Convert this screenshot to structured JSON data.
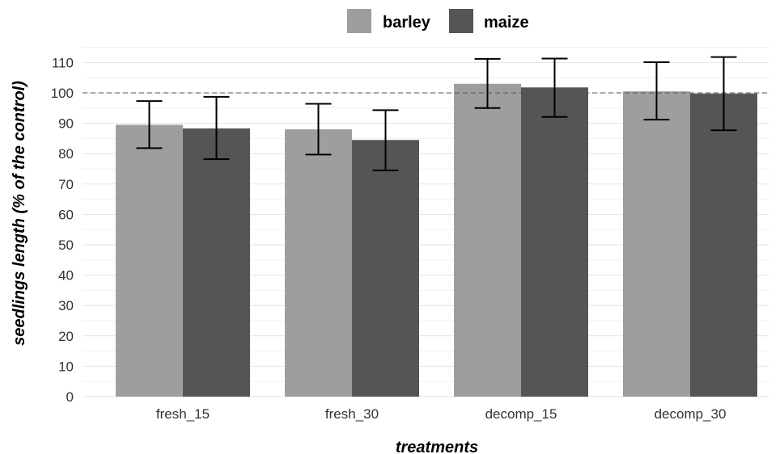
{
  "chart_data": {
    "type": "bar",
    "title": "",
    "xlabel": "treatments",
    "ylabel": "seedlings length (% of the control)",
    "categories": [
      "fresh_15",
      "fresh_30",
      "decomp_15",
      "decomp_30"
    ],
    "series": [
      {
        "name": "barley",
        "color": "#9e9e9e",
        "values": [
          89.5,
          88,
          103,
          100.5
        ],
        "error_low": [
          81.8,
          79.7,
          95,
          91.2
        ],
        "error_high": [
          97.3,
          96.4,
          111.2,
          110.1
        ]
      },
      {
        "name": "maize",
        "color": "#555555",
        "values": [
          88.3,
          84.5,
          101.8,
          99.8
        ],
        "error_low": [
          78.2,
          74.5,
          92.1,
          87.7
        ],
        "error_high": [
          98.7,
          94.3,
          111.3,
          111.8
        ]
      }
    ],
    "yticks": [
      0,
      10,
      20,
      30,
      40,
      50,
      60,
      70,
      80,
      90,
      100,
      110
    ],
    "ylim": [
      0,
      115
    ],
    "reference_line": 100,
    "grid": true,
    "legend_position": "top-center"
  }
}
